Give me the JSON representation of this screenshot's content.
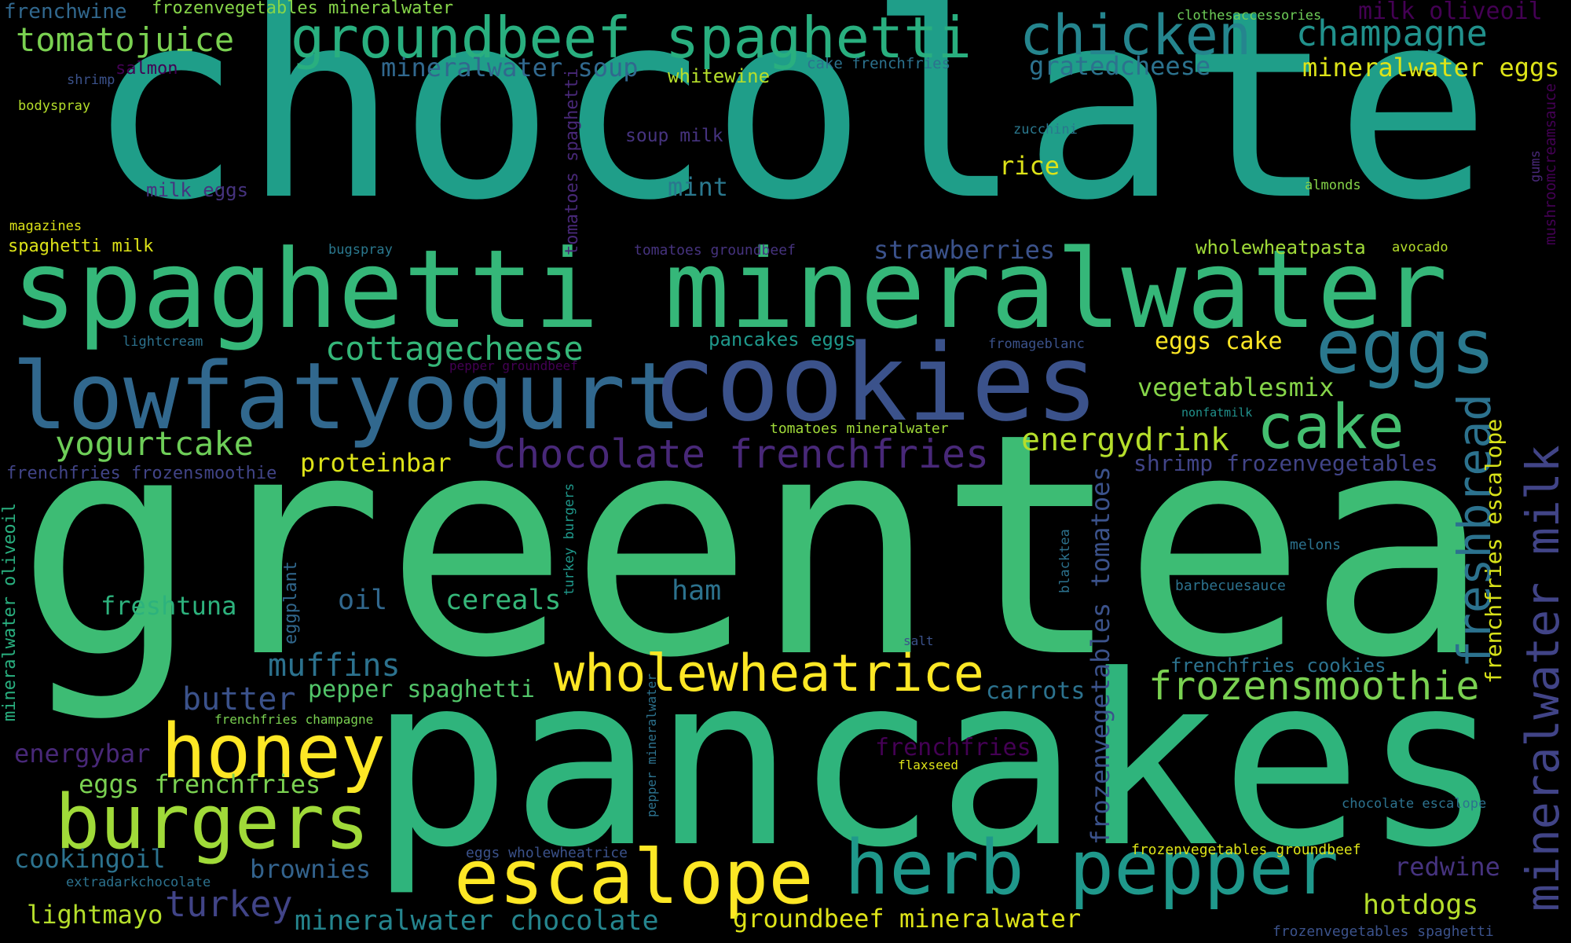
{
  "words": [
    {
      "key": "chocolate",
      "text": "chocolate",
      "color": "#1f9e89",
      "vertical": false
    },
    {
      "key": "greentea",
      "text": "greentea",
      "color": "#3dbc74",
      "vertical": false
    },
    {
      "key": "pancakes",
      "text": "pancakes",
      "color": "#2fb47c",
      "vertical": false
    },
    {
      "key": "spaghetti_mineralwater",
      "text": "spaghetti mineralwater",
      "color": "#35b779",
      "vertical": false
    },
    {
      "key": "lowfatyogurt",
      "text": "lowfatyogurt",
      "color": "#31688e",
      "vertical": false
    },
    {
      "key": "cookies",
      "text": "cookies",
      "color": "#3b528b",
      "vertical": false
    },
    {
      "key": "groundbeef_spaghetti",
      "text": "groundbeef spaghetti",
      "color": "#29af7f",
      "vertical": false
    },
    {
      "key": "chicken",
      "text": "chicken",
      "color": "#25858e",
      "vertical": false
    },
    {
      "key": "champagne",
      "text": "champagne",
      "color": "#21918c",
      "vertical": false
    },
    {
      "key": "eggs",
      "text": "eggs",
      "color": "#2a788e",
      "vertical": false
    },
    {
      "key": "cake",
      "text": "cake",
      "color": "#44bf70",
      "vertical": false
    },
    {
      "key": "honey",
      "text": "honey",
      "color": "#fde725",
      "vertical": false
    },
    {
      "key": "burgers",
      "text": "burgers",
      "color": "#a0da39",
      "vertical": false
    },
    {
      "key": "escalope",
      "text": "escalope",
      "color": "#fde725",
      "vertical": false
    },
    {
      "key": "herb_pepper",
      "text": "herb pepper",
      "color": "#1f988b",
      "vertical": false
    },
    {
      "key": "wholewheatrice",
      "text": "wholewheatrice",
      "color": "#fde725",
      "vertical": false
    },
    {
      "key": "frozensmoothie",
      "text": "frozensmoothie",
      "color": "#7ad151",
      "vertical": false
    },
    {
      "key": "mineralwater_milk",
      "text": "mineralwater milk",
      "color": "#414487",
      "vertical": true
    },
    {
      "key": "freshbread",
      "text": "freshbread",
      "color": "#2c728e",
      "vertical": true
    },
    {
      "key": "chocolate_frenchfries",
      "text": "chocolate frenchfries",
      "color": "#482878",
      "vertical": false
    },
    {
      "key": "tomatojuice",
      "text": "tomatojuice",
      "color": "#7ad151",
      "vertical": false
    },
    {
      "key": "cottagecheese",
      "text": "cottagecheese",
      "color": "#35b779",
      "vertical": false
    },
    {
      "key": "yogurtcake",
      "text": "yogurtcake",
      "color": "#6ece58",
      "vertical": false
    },
    {
      "key": "energydrink",
      "text": "energydrink",
      "color": "#b5de2b",
      "vertical": false
    },
    {
      "key": "mineralwater_soup",
      "text": "mineralwater soup",
      "color": "#31688e",
      "vertical": false
    },
    {
      "key": "mineralwater_eggs",
      "text": "mineralwater eggs",
      "color": "#dde318",
      "vertical": false
    },
    {
      "key": "gratedcheese",
      "text": "gratedcheese",
      "color": "#2c728e",
      "vertical": false
    },
    {
      "key": "strawberries",
      "text": "strawberries",
      "color": "#3b528b",
      "vertical": false
    },
    {
      "key": "vegetablesmix",
      "text": "vegetablesmix",
      "color": "#86d549",
      "vertical": false
    },
    {
      "key": "shrimp_frozenvegetables",
      "text": "shrimp frozenvegetables",
      "color": "#414487",
      "vertical": false
    },
    {
      "key": "proteinbar",
      "text": "proteinbar",
      "color": "#dde318",
      "vertical": false
    },
    {
      "key": "eggs_cake",
      "text": "eggs cake",
      "color": "#fde725",
      "vertical": false
    },
    {
      "key": "muffins",
      "text": "muffins",
      "color": "#2c728e",
      "vertical": false
    },
    {
      "key": "butter",
      "text": "butter",
      "color": "#3b528b",
      "vertical": false
    },
    {
      "key": "energybar",
      "text": "energybar",
      "color": "#482878",
      "vertical": false
    },
    {
      "key": "eggs_frenchfries",
      "text": "eggs frenchfries",
      "color": "#7ad151",
      "vertical": false
    },
    {
      "key": "cookingoil",
      "text": "cookingoil",
      "color": "#2c728e",
      "vertical": false
    },
    {
      "key": "brownies",
      "text": "brownies",
      "color": "#33638d",
      "vertical": false
    },
    {
      "key": "turkey",
      "text": "turkey",
      "color": "#414487",
      "vertical": false
    },
    {
      "key": "lightmayo",
      "text": "lightmayo",
      "color": "#b5de2b",
      "vertical": false
    },
    {
      "key": "mineralwater_chocolate",
      "text": "mineralwater chocolate",
      "color": "#25858e",
      "vertical": false
    },
    {
      "key": "groundbeef_mineralwater",
      "text": "groundbeef mineralwater",
      "color": "#dde318",
      "vertical": false
    },
    {
      "key": "hotdogs",
      "text": "hotdogs",
      "color": "#b5de2b",
      "vertical": false
    },
    {
      "key": "redwine",
      "text": "redwine",
      "color": "#46337f",
      "vertical": false
    },
    {
      "key": "freshtuna",
      "text": "freshtuna",
      "color": "#2db27d",
      "vertical": false
    },
    {
      "key": "cereals",
      "text": "cereals",
      "color": "#35b779",
      "vertical": false
    },
    {
      "key": "oil",
      "text": "oil",
      "color": "#31688e",
      "vertical": false
    },
    {
      "key": "ham",
      "text": "ham",
      "color": "#2c728e",
      "vertical": false
    },
    {
      "key": "pepper_spaghetti",
      "text": "pepper spaghetti",
      "color": "#52c569",
      "vertical": false
    },
    {
      "key": "carrots",
      "text": "carrots",
      "color": "#2c728e",
      "vertical": false
    },
    {
      "key": "frenchfries",
      "text": "frenchfries",
      "color": "#440154",
      "vertical": false
    },
    {
      "key": "frenchfries_cookies",
      "text": "frenchfries cookies",
      "color": "#2c728e",
      "vertical": false
    },
    {
      "key": "frozenvegetables_tomatoes",
      "text": "frozenvegetables tomatoes",
      "color": "#3b528b",
      "vertical": true
    },
    {
      "key": "frenchfries_escalope",
      "text": "frenchfries escalope",
      "color": "#d8e219",
      "vertical": true
    },
    {
      "key": "rice",
      "text": "rice",
      "color": "#dde318",
      "vertical": false
    },
    {
      "key": "mint",
      "text": "mint",
      "color": "#2a788e",
      "vertical": false
    },
    {
      "key": "wholewheatpasta",
      "text": "wholewheatpasta",
      "color": "#a0da39",
      "vertical": false
    },
    {
      "key": "pancakes_eggs",
      "text": "pancakes eggs",
      "color": "#1f988b",
      "vertical": false
    },
    {
      "key": "whitewine",
      "text": "whitewine",
      "color": "#b5de2b",
      "vertical": false
    },
    {
      "key": "milk_oliveoil",
      "text": "milk oliveoil",
      "color": "#440154",
      "vertical": false
    },
    {
      "key": "frenchwine",
      "text": "frenchwine",
      "color": "#31688e",
      "vertical": false
    },
    {
      "key": "frozenvegetables_mineralwater",
      "text": "frozenvegetables mineralwater",
      "color": "#86d549",
      "vertical": false
    },
    {
      "key": "clothesaccessories",
      "text": "clothesaccessories",
      "color": "#6ece58",
      "vertical": false
    },
    {
      "key": "cake_frenchfries",
      "text": "cake frenchfries",
      "color": "#2c728e",
      "vertical": false
    },
    {
      "key": "salmon",
      "text": "salmon",
      "color": "#440154",
      "vertical": false
    },
    {
      "key": "shrimp",
      "text": "shrimp",
      "color": "#3b528b",
      "vertical": false
    },
    {
      "key": "bodyspray",
      "text": "bodyspray",
      "color": "#b5de2b",
      "vertical": false
    },
    {
      "key": "soup_milk",
      "text": "soup milk",
      "color": "#46337f",
      "vertical": false
    },
    {
      "key": "milk_eggs",
      "text": "milk eggs",
      "color": "#46337f",
      "vertical": false
    },
    {
      "key": "magazines",
      "text": "magazines",
      "color": "#dde318",
      "vertical": false
    },
    {
      "key": "spaghetti_milk",
      "text": "spaghetti milk",
      "color": "#dde318",
      "vertical": false
    },
    {
      "key": "bugspray",
      "text": "bugspray",
      "color": "#2a788e",
      "vertical": false
    },
    {
      "key": "tomatoes_groundbeef",
      "text": "tomatoes groundbeef",
      "color": "#46337f",
      "vertical": false
    },
    {
      "key": "tomatoes_spaghetti",
      "text": "tomatoes spaghetti",
      "color": "#482878",
      "vertical": true
    },
    {
      "key": "zucchini",
      "text": "zucchini",
      "color": "#2a788e",
      "vertical": false
    },
    {
      "key": "almonds",
      "text": "almonds",
      "color": "#86d549",
      "vertical": false
    },
    {
      "key": "gums",
      "text": "gums",
      "color": "#482878",
      "vertical": true
    },
    {
      "key": "mushroomcreamsauce",
      "text": "mushroomcreamsauce",
      "color": "#440154",
      "vertical": true
    },
    {
      "key": "avocado",
      "text": "avocado",
      "color": "#b5de2b",
      "vertical": false
    },
    {
      "key": "lightcream",
      "text": "lightcream",
      "color": "#2c728e",
      "vertical": false
    },
    {
      "key": "pepper_groundbeef",
      "text": "pepper groundbeef",
      "color": "#440154",
      "vertical": false
    },
    {
      "key": "fromageblanc",
      "text": "fromageblanc",
      "color": "#3b528b",
      "vertical": false
    },
    {
      "key": "nonfatmilk",
      "text": "nonfatmilk",
      "color": "#21918c",
      "vertical": false
    },
    {
      "key": "tomatoes_mineralwater",
      "text": "tomatoes mineralwater",
      "color": "#a0da39",
      "vertical": false
    },
    {
      "key": "frenchfries_frozensmoothie",
      "text": "frenchfries frozensmoothie",
      "color": "#414487",
      "vertical": false
    },
    {
      "key": "mineralwater_oliveoil",
      "text": "mineralwater oliveoil",
      "color": "#29af7f",
      "vertical": true
    },
    {
      "key": "eggplant",
      "text": "eggplant",
      "color": "#31688e",
      "vertical": true
    },
    {
      "key": "turkey_burgers",
      "text": "turkey burgers",
      "color": "#1f988b",
      "vertical": true
    },
    {
      "key": "blacktea",
      "text": "blacktea",
      "color": "#2c728e",
      "vertical": true
    },
    {
      "key": "melons",
      "text": "melons",
      "color": "#2c728e",
      "vertical": false
    },
    {
      "key": "barbecuesauce",
      "text": "barbecuesauce",
      "color": "#2c728e",
      "vertical": false
    },
    {
      "key": "salt",
      "text": "salt",
      "color": "#3b528b",
      "vertical": false
    },
    {
      "key": "frenchfries_champagne",
      "text": "frenchfries champagne",
      "color": "#7ad151",
      "vertical": false
    },
    {
      "key": "pepper_mineralwater",
      "text": "pepper mineralwater",
      "color": "#2c728e",
      "vertical": true
    },
    {
      "key": "flaxseed",
      "text": "flaxseed",
      "color": "#dde318",
      "vertical": false
    },
    {
      "key": "chocolate_escalope",
      "text": "chocolate escalope",
      "color": "#2c728e",
      "vertical": false
    },
    {
      "key": "frozenvegetables_groundbeef",
      "text": "frozenvegetables groundbeef",
      "color": "#dde318",
      "vertical": false
    },
    {
      "key": "eggs_wholewheatrice",
      "text": "eggs wholewheatrice",
      "color": "#3b528b",
      "vertical": false
    },
    {
      "key": "extradarkchocolate",
      "text": "extradarkchocolate",
      "color": "#2c728e",
      "vertical": false
    },
    {
      "key": "frozenvegetables_spaghetti",
      "text": "frozenvegetables spaghetti",
      "color": "#3b528b",
      "vertical": false
    }
  ]
}
